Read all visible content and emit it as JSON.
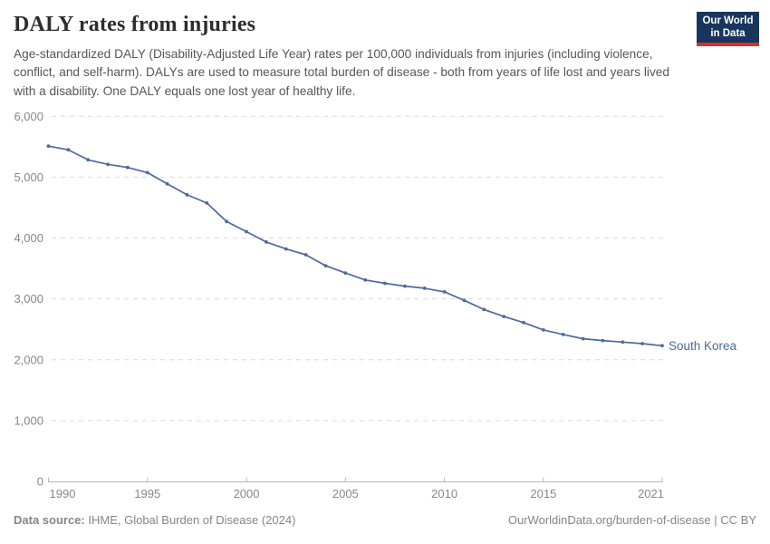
{
  "header": {
    "title": "DALY rates from injuries",
    "subtitle": "Age-standardized DALY (Disability-Adjusted Life Year) rates per 100,000 individuals from injuries (including violence, conflict, and self-harm). DALYs are used to measure total burden of disease - both from years of life lost and years lived with a disability. One DALY equals one lost year of healthy life.",
    "logo": {
      "line1": "Our World",
      "line2": "in Data"
    }
  },
  "chart_data": {
    "type": "line",
    "title": "DALY rates from injuries",
    "x": [
      1990,
      1991,
      1992,
      1993,
      1994,
      1995,
      1996,
      1997,
      1998,
      1999,
      2000,
      2001,
      2002,
      2003,
      2004,
      2005,
      2006,
      2007,
      2008,
      2009,
      2010,
      2011,
      2012,
      2013,
      2014,
      2015,
      2016,
      2017,
      2018,
      2019,
      2020,
      2021
    ],
    "series": [
      {
        "name": "South Korea",
        "color": "#4c6a9c",
        "values": [
          5510,
          5450,
          5285,
          5210,
          5160,
          5075,
          4890,
          4710,
          4575,
          4270,
          4105,
          3935,
          3820,
          3725,
          3545,
          3425,
          3310,
          3255,
          3210,
          3175,
          3115,
          2975,
          2825,
          2710,
          2610,
          2490,
          2415,
          2345,
          2315,
          2290,
          2265,
          2230
        ]
      }
    ],
    "xlabel": "",
    "ylabel": "",
    "xlim": [
      1990,
      2021
    ],
    "ylim": [
      0,
      6000
    ],
    "xticks": [
      1990,
      1995,
      2000,
      2005,
      2010,
      2015,
      2021
    ],
    "yticks": [
      0,
      1000,
      2000,
      3000,
      4000,
      5000,
      6000
    ],
    "ytick_labels": [
      "0",
      "1,000",
      "2,000",
      "3,000",
      "4,000",
      "5,000",
      "6,000"
    ],
    "grid": "horizontal-dashed",
    "legend_position": "end-of-line-label",
    "entity_label": "South Korea"
  },
  "footer": {
    "data_source_label": "Data source:",
    "data_source_value": " IHME, Global Burden of Disease (2024)",
    "url": "OurWorldinData.org/burden-of-disease",
    "separator": " | ",
    "license": "CC BY"
  },
  "colors": {
    "line": "#4c6a9c",
    "grid": "#dcdcdc",
    "axis": "#b8b8b8",
    "tick_text": "#878787",
    "logo_bg": "#18355e",
    "logo_accent": "#d93025"
  }
}
